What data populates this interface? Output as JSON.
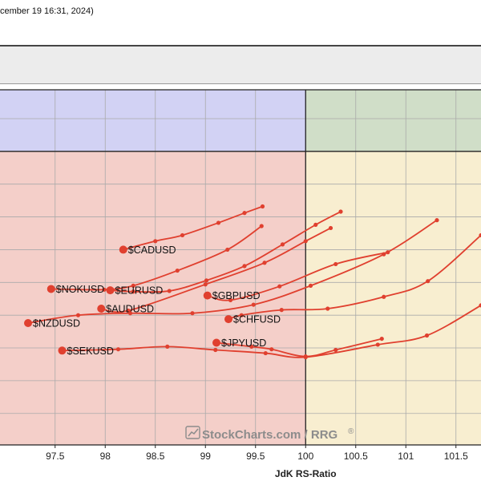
{
  "header": {
    "title": "cember 19 16:31, 2024)"
  },
  "watermark": {
    "text": "StockCharts.com / RRG",
    "reg": "®"
  },
  "colors": {
    "leading": "#d0dec8",
    "weakening": "#f8eed0",
    "lagging": "#f4cfc9",
    "improving": "#d2d2f4",
    "tail": "#e0402f",
    "grid": "#aaaaaa",
    "axis": "#222222"
  },
  "chart_data": {
    "type": "scatter",
    "title": "",
    "xlabel": "JdK RS-Ratio",
    "ylabel": "",
    "xlim": [
      96.95,
      101.75
    ],
    "ylim": [
      97.52,
      102.94
    ],
    "xticks": [
      "97.5",
      "98",
      "98.5",
      "99",
      "99.5",
      "100",
      "100.5",
      "101",
      "101.5"
    ],
    "grid": true,
    "series": [
      {
        "name": "$CADUSD",
        "points": [
          [
            99.57,
            101.16
          ],
          [
            99.39,
            101.06
          ],
          [
            99.13,
            100.91
          ],
          [
            98.77,
            100.72
          ],
          [
            98.5,
            100.63
          ],
          [
            98.18,
            100.5
          ]
        ]
      },
      {
        "name": "$NOKUSD",
        "points": [
          [
            99.56,
            100.86
          ],
          [
            99.22,
            100.5
          ],
          [
            98.72,
            100.18
          ],
          [
            98.28,
            99.95
          ],
          [
            97.99,
            99.89
          ],
          [
            97.46,
            99.9
          ]
        ]
      },
      {
        "name": "$EURUSD",
        "points": [
          [
            100.35,
            101.08
          ],
          [
            100.1,
            100.88
          ],
          [
            99.77,
            100.58
          ],
          [
            99.39,
            100.25
          ],
          [
            99.01,
            100.03
          ],
          [
            98.64,
            99.87
          ],
          [
            98.28,
            99.86
          ],
          [
            98.05,
            99.88
          ]
        ]
      },
      {
        "name": "$AUDUSD",
        "points": [
          [
            100.25,
            100.83
          ],
          [
            100.0,
            100.63
          ],
          [
            99.59,
            100.3
          ],
          [
            99.0,
            99.97
          ],
          [
            98.23,
            99.57
          ],
          [
            97.96,
            99.6
          ]
        ]
      },
      {
        "name": "$GBPUSD",
        "points": [
          [
            100.82,
            100.46
          ],
          [
            100.3,
            100.28
          ],
          [
            99.74,
            99.94
          ],
          [
            99.25,
            99.73
          ],
          [
            99.02,
            99.8
          ]
        ]
      },
      {
        "name": "$NZDUSD",
        "points": [
          [
            101.31,
            100.95
          ],
          [
            100.78,
            100.43
          ],
          [
            100.05,
            99.95
          ],
          [
            99.48,
            99.66
          ],
          [
            98.87,
            99.53
          ],
          [
            98.25,
            99.53
          ],
          [
            97.73,
            99.5
          ],
          [
            97.23,
            99.38
          ]
        ]
      },
      {
        "name": "$CHFUSD",
        "points": [
          [
            101.75,
            100.72
          ],
          [
            101.22,
            100.02
          ],
          [
            100.78,
            99.78
          ],
          [
            100.22,
            99.6
          ],
          [
            99.76,
            99.58
          ],
          [
            99.36,
            99.5
          ],
          [
            99.23,
            99.44
          ]
        ]
      },
      {
        "name": "$SEKUSD",
        "points": [
          [
            101.75,
            99.65
          ],
          [
            101.21,
            99.19
          ],
          [
            100.72,
            99.05
          ],
          [
            100.0,
            98.86
          ],
          [
            99.6,
            98.92
          ],
          [
            99.1,
            98.97
          ],
          [
            98.62,
            99.02
          ],
          [
            98.13,
            98.98
          ],
          [
            97.57,
            98.96
          ]
        ]
      },
      {
        "name": "$JPYUSD",
        "points": [
          [
            100.76,
            99.14
          ],
          [
            100.3,
            98.97
          ],
          [
            100.0,
            98.87
          ],
          [
            99.66,
            98.98
          ],
          [
            99.46,
            99.02
          ],
          [
            99.11,
            99.08
          ]
        ]
      }
    ]
  }
}
